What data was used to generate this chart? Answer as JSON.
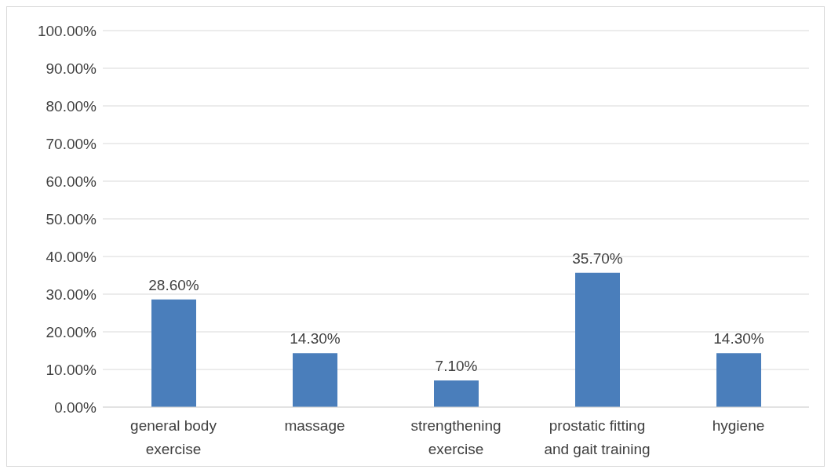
{
  "chart_data": {
    "type": "bar",
    "categories": [
      "general body exercise",
      "massage",
      "strengthening exercise",
      "prostatic fitting and gait training",
      "hygiene"
    ],
    "values": [
      28.6,
      14.3,
      7.1,
      35.7,
      14.3
    ],
    "value_labels": [
      "28.60%",
      "14.30%",
      "7.10%",
      "35.70%",
      "14.30%"
    ],
    "color": "#4a7ebb",
    "ylim": [
      0,
      100
    ],
    "yticks": [
      {
        "value": 0,
        "label": "0.00%"
      },
      {
        "value": 10,
        "label": "10.00%"
      },
      {
        "value": 20,
        "label": "20.00%"
      },
      {
        "value": 30,
        "label": "30.00%"
      },
      {
        "value": 40,
        "label": "40.00%"
      },
      {
        "value": 50,
        "label": "50.00%"
      },
      {
        "value": 60,
        "label": "60.00%"
      },
      {
        "value": 70,
        "label": "70.00%"
      },
      {
        "value": 80,
        "label": "80.00%"
      },
      {
        "value": 90,
        "label": "90.00%"
      },
      {
        "value": 100,
        "label": "100.00%"
      }
    ],
    "grid": "y",
    "legend": false
  }
}
